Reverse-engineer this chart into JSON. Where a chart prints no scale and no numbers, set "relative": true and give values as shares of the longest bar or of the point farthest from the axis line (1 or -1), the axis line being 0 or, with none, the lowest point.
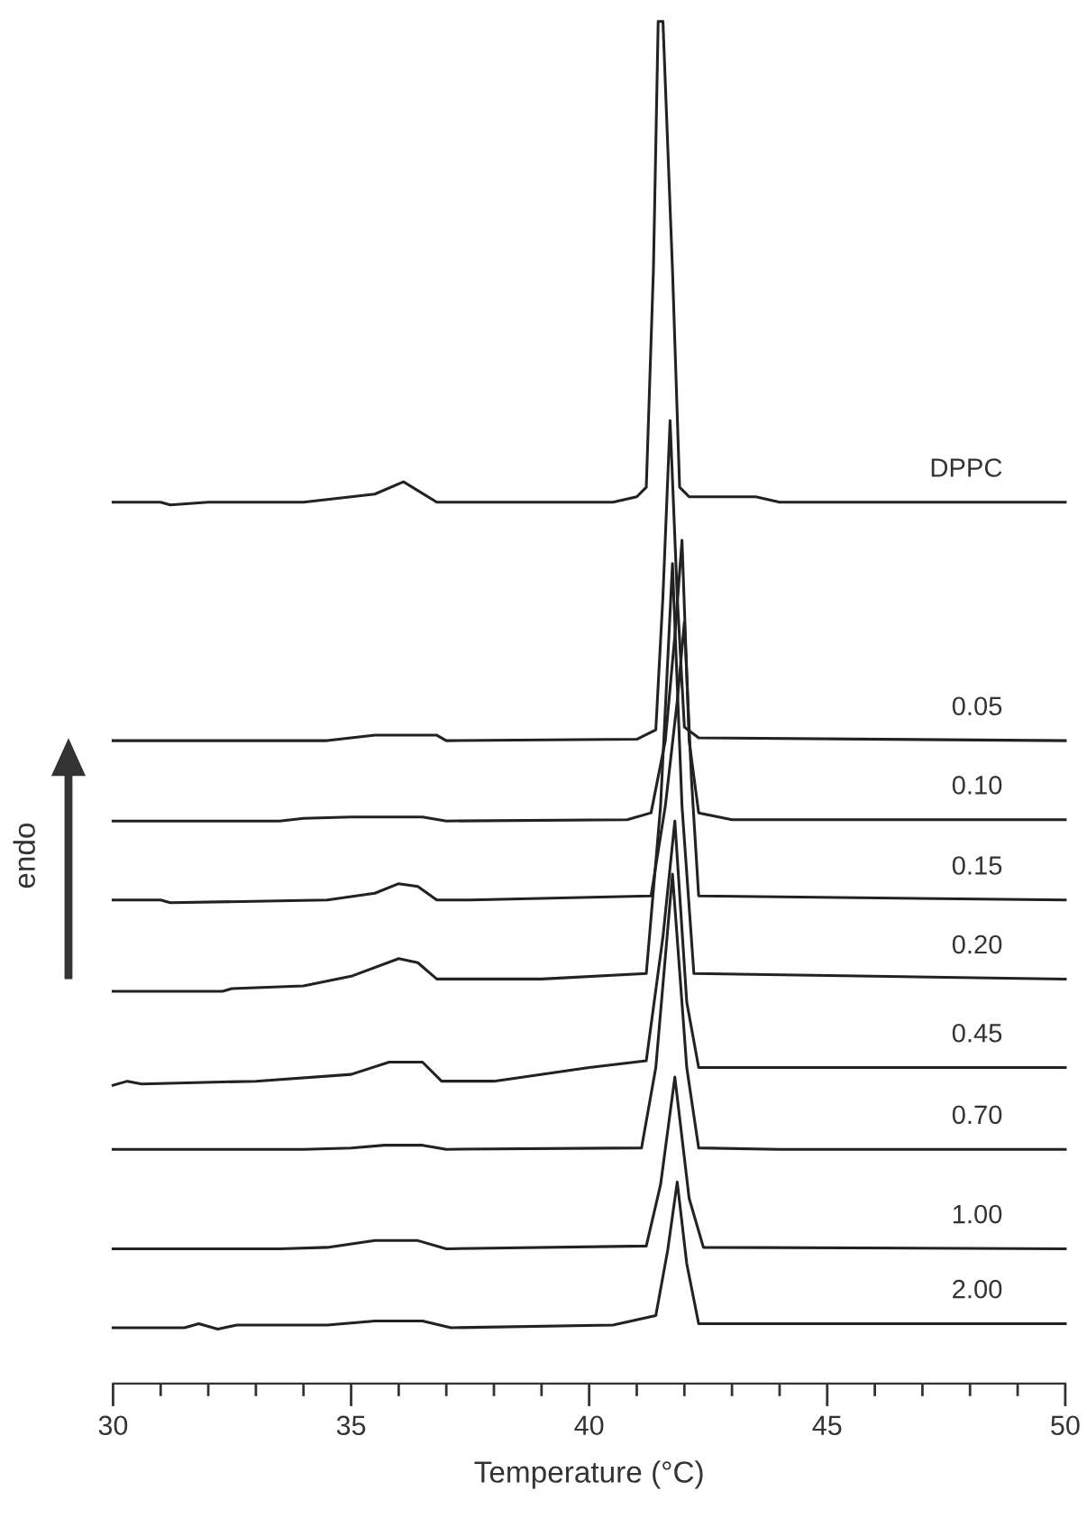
{
  "chart_data": {
    "type": "line",
    "relative": true,
    "xlabel": "Temperature (°C)",
    "ylabel": "endo",
    "xlim": [
      30,
      50
    ],
    "xticks": [
      30,
      {
        "value": 31,
        "label": null
      },
      {
        "value": 32,
        "label": null
      },
      {
        "value": 33,
        "label": null
      },
      {
        "value": 34,
        "label": null
      },
      35,
      {
        "value": 36,
        "label": null
      },
      {
        "value": 37,
        "label": null
      },
      {
        "value": 38,
        "label": null
      },
      {
        "value": 39,
        "label": null
      },
      40,
      {
        "value": 41,
        "label": null
      },
      {
        "value": 42,
        "label": null
      },
      {
        "value": 43,
        "label": null
      },
      {
        "value": 44,
        "label": null
      },
      45,
      {
        "value": 46,
        "label": null
      },
      {
        "value": 47,
        "label": null
      },
      {
        "value": 48,
        "label": null
      },
      {
        "value": 49,
        "label": null
      },
      50
    ],
    "grid": false,
    "legend": false,
    "line_style": "solid",
    "series": [
      {
        "name": "DPPC",
        "color": "#222222",
        "x": [
          30,
          31,
          31.2,
          32,
          34,
          35,
          35.5,
          36.1,
          36.8,
          40.5,
          41.0,
          41.2,
          41.35,
          41.45,
          41.55,
          41.75,
          41.9,
          42.1,
          43.5,
          44,
          50
        ],
        "values": [
          0.647,
          0.647,
          0.645,
          0.647,
          0.647,
          0.651,
          0.653,
          0.662,
          0.647,
          0.647,
          0.651,
          0.658,
          0.818,
          1.0,
          1.0,
          0.818,
          0.658,
          0.651,
          0.651,
          0.647,
          0.647
        ]
      },
      {
        "name": "0.05",
        "color": "#222222",
        "x": [
          30,
          34.5,
          35,
          35.5,
          36.8,
          37.0,
          41.0,
          41.4,
          41.55,
          41.7,
          41.85,
          42.0,
          42.3,
          50
        ],
        "values": [
          0.472,
          0.472,
          0.474,
          0.476,
          0.476,
          0.472,
          0.473,
          0.48,
          0.578,
          0.707,
          0.578,
          0.482,
          0.474,
          0.472
        ]
      },
      {
        "name": "0.10",
        "color": "#222222",
        "x": [
          30,
          33.5,
          34,
          35,
          36.5,
          37,
          40.8,
          41.3,
          41.6,
          41.8,
          41.95,
          42.1,
          42.3,
          43,
          50
        ],
        "values": [
          0.413,
          0.413,
          0.415,
          0.416,
          0.416,
          0.413,
          0.414,
          0.419,
          0.472,
          0.549,
          0.619,
          0.472,
          0.419,
          0.414,
          0.414
        ]
      },
      {
        "name": "0.15",
        "color": "#222222",
        "x": [
          30,
          31,
          31.2,
          34.5,
          35.5,
          36,
          36.4,
          36.8,
          37.5,
          41.3,
          41.6,
          41.85,
          42.0,
          42.15,
          42.3,
          50
        ],
        "values": [
          0.355,
          0.355,
          0.353,
          0.355,
          0.36,
          0.367,
          0.365,
          0.355,
          0.355,
          0.358,
          0.424,
          0.501,
          0.559,
          0.443,
          0.358,
          0.355
        ]
      },
      {
        "name": "0.20",
        "color": "#222222",
        "x": [
          30,
          32.3,
          32.5,
          34,
          35,
          36,
          36.4,
          36.8,
          39,
          41.2,
          41.5,
          41.75,
          41.95,
          42.2,
          50
        ],
        "values": [
          0.288,
          0.288,
          0.29,
          0.292,
          0.299,
          0.312,
          0.309,
          0.297,
          0.297,
          0.301,
          0.424,
          0.602,
          0.424,
          0.301,
          0.297
        ]
      },
      {
        "name": "0.45",
        "color": "#222222",
        "x": [
          30,
          30.3,
          30.6,
          33,
          35,
          35.8,
          36.5,
          36.9,
          38,
          40,
          41.2,
          41.55,
          41.8,
          42.05,
          42.3,
          50
        ],
        "values": [
          0.219,
          0.222,
          0.22,
          0.222,
          0.227,
          0.236,
          0.236,
          0.222,
          0.222,
          0.232,
          0.237,
          0.328,
          0.413,
          0.28,
          0.232,
          0.232
        ]
      },
      {
        "name": "0.70",
        "color": "#222222",
        "x": [
          30,
          34,
          35,
          35.7,
          36.5,
          37,
          41.1,
          41.4,
          41.75,
          42.05,
          42.3,
          44,
          50
        ],
        "values": [
          0.172,
          0.172,
          0.173,
          0.175,
          0.175,
          0.172,
          0.173,
          0.232,
          0.374,
          0.232,
          0.173,
          0.172,
          0.172
        ]
      },
      {
        "name": "1.00",
        "color": "#222222",
        "x": [
          30,
          33.5,
          34.5,
          35.5,
          36.4,
          37,
          41.2,
          41.5,
          41.8,
          42.1,
          42.4,
          50
        ],
        "values": [
          0.099,
          0.099,
          0.1,
          0.105,
          0.105,
          0.099,
          0.101,
          0.146,
          0.225,
          0.136,
          0.1,
          0.099
        ]
      },
      {
        "name": "2.00",
        "color": "#222222",
        "x": [
          30,
          31.5,
          31.8,
          32.2,
          32.6,
          34.5,
          35.5,
          36.5,
          37.1,
          40.5,
          41.4,
          41.65,
          41.85,
          42.05,
          42.3,
          50
        ],
        "values": [
          0.041,
          0.041,
          0.044,
          0.04,
          0.043,
          0.043,
          0.046,
          0.046,
          0.041,
          0.043,
          0.05,
          0.098,
          0.148,
          0.088,
          0.044,
          0.044
        ]
      }
    ]
  }
}
